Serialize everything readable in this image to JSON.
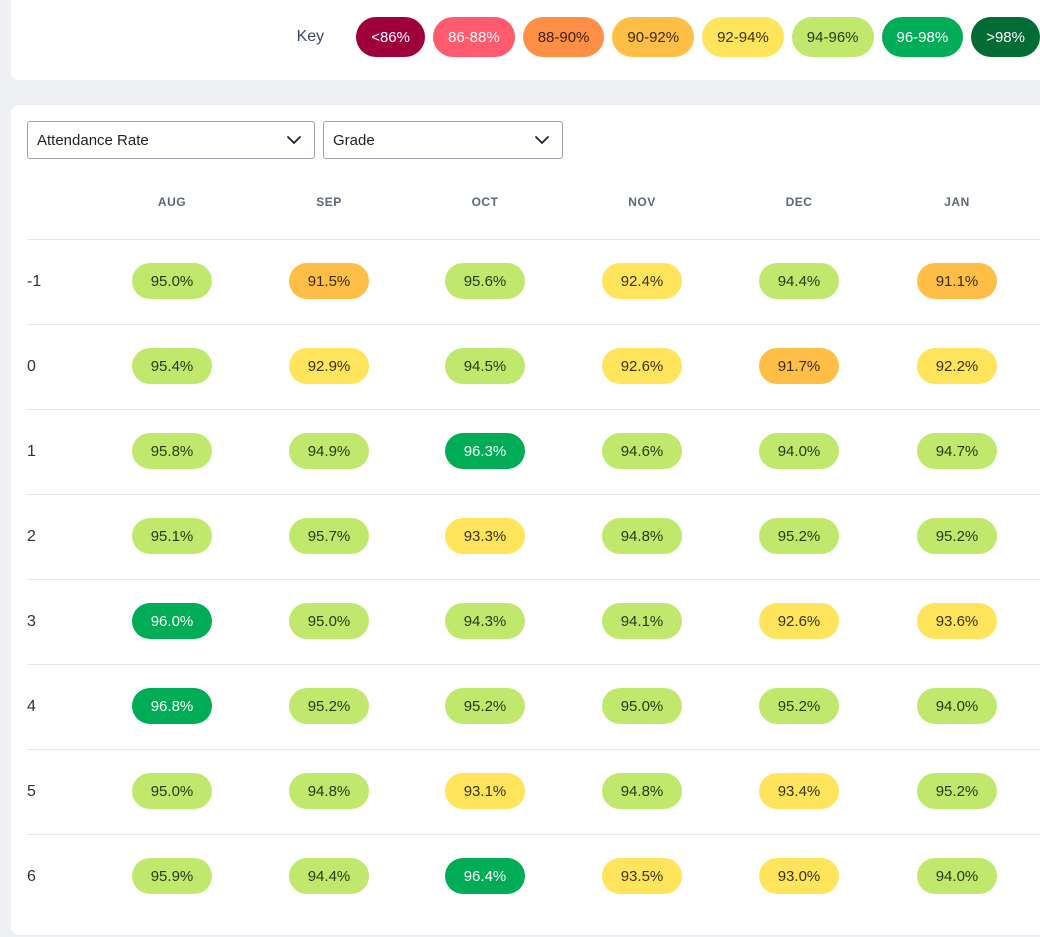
{
  "key": {
    "label": "Key",
    "items": [
      {
        "label": "<86%",
        "bg": "#a0003a",
        "fg": "#ffffff"
      },
      {
        "label": "86-88%",
        "bg": "#ff5a6e",
        "fg": "#ffffff"
      },
      {
        "label": "88-90%",
        "bg": "#ff8f47",
        "fg": "#3a2410"
      },
      {
        "label": "90-92%",
        "bg": "#ffbf47",
        "fg": "#3a2a10"
      },
      {
        "label": "92-94%",
        "bg": "#ffe45c",
        "fg": "#3a3210"
      },
      {
        "label": "94-96%",
        "bg": "#bfe86c",
        "fg": "#2a3a10"
      },
      {
        "label": "96-98%",
        "bg": "#00ac55",
        "fg": "#ffffff"
      },
      {
        "label": ">98%",
        "bg": "#036b34",
        "fg": "#ffffff"
      }
    ]
  },
  "filters": {
    "metric": "Attendance Rate",
    "group_by": "Grade"
  },
  "table": {
    "months": [
      "AUG",
      "SEP",
      "OCT",
      "NOV",
      "DEC",
      "JAN"
    ],
    "rows": [
      {
        "grade": "-1",
        "values": [
          "95.0%",
          "91.5%",
          "95.6%",
          "92.4%",
          "94.4%",
          "91.1%"
        ]
      },
      {
        "grade": "0",
        "values": [
          "95.4%",
          "92.9%",
          "94.5%",
          "92.6%",
          "91.7%",
          "92.2%"
        ]
      },
      {
        "grade": "1",
        "values": [
          "95.8%",
          "94.9%",
          "96.3%",
          "94.6%",
          "94.0%",
          "94.7%"
        ]
      },
      {
        "grade": "2",
        "values": [
          "95.1%",
          "95.7%",
          "93.3%",
          "94.8%",
          "95.2%",
          "95.2%"
        ]
      },
      {
        "grade": "3",
        "values": [
          "96.0%",
          "95.0%",
          "94.3%",
          "94.1%",
          "92.6%",
          "93.6%"
        ]
      },
      {
        "grade": "4",
        "values": [
          "96.8%",
          "95.2%",
          "95.2%",
          "95.0%",
          "95.2%",
          "94.0%"
        ]
      },
      {
        "grade": "5",
        "values": [
          "95.0%",
          "94.8%",
          "93.1%",
          "94.8%",
          "93.4%",
          "95.2%"
        ]
      },
      {
        "grade": "6",
        "values": [
          "95.9%",
          "94.4%",
          "96.4%",
          "93.5%",
          "93.0%",
          "94.0%"
        ]
      }
    ]
  }
}
